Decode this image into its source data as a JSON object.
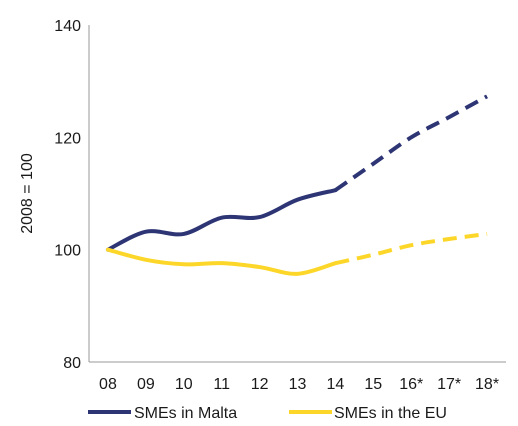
{
  "chart_data": {
    "type": "line",
    "ylabel": "2008 = 100",
    "xlabel": "",
    "ylim": [
      80,
      140
    ],
    "yticks": [
      80,
      100,
      120,
      140
    ],
    "categories": [
      "08",
      "09",
      "10",
      "11",
      "12",
      "13",
      "14",
      "15",
      "16*",
      "17*",
      "18*"
    ],
    "projection_from_index": 6,
    "grid": false,
    "legend_position": "bottom",
    "series": [
      {
        "name": "SMEs in Malta",
        "color": "#2e3574",
        "values": [
          100,
          103.2,
          102.8,
          105.7,
          105.8,
          108.9,
          110.6,
          115.3,
          120.0,
          123.6,
          127.3
        ]
      },
      {
        "name": "SMEs in the EU",
        "color": "#fcd72a",
        "values": [
          100,
          98.2,
          97.4,
          97.6,
          96.9,
          95.7,
          97.6,
          99.1,
          100.8,
          101.9,
          102.8
        ]
      }
    ]
  }
}
